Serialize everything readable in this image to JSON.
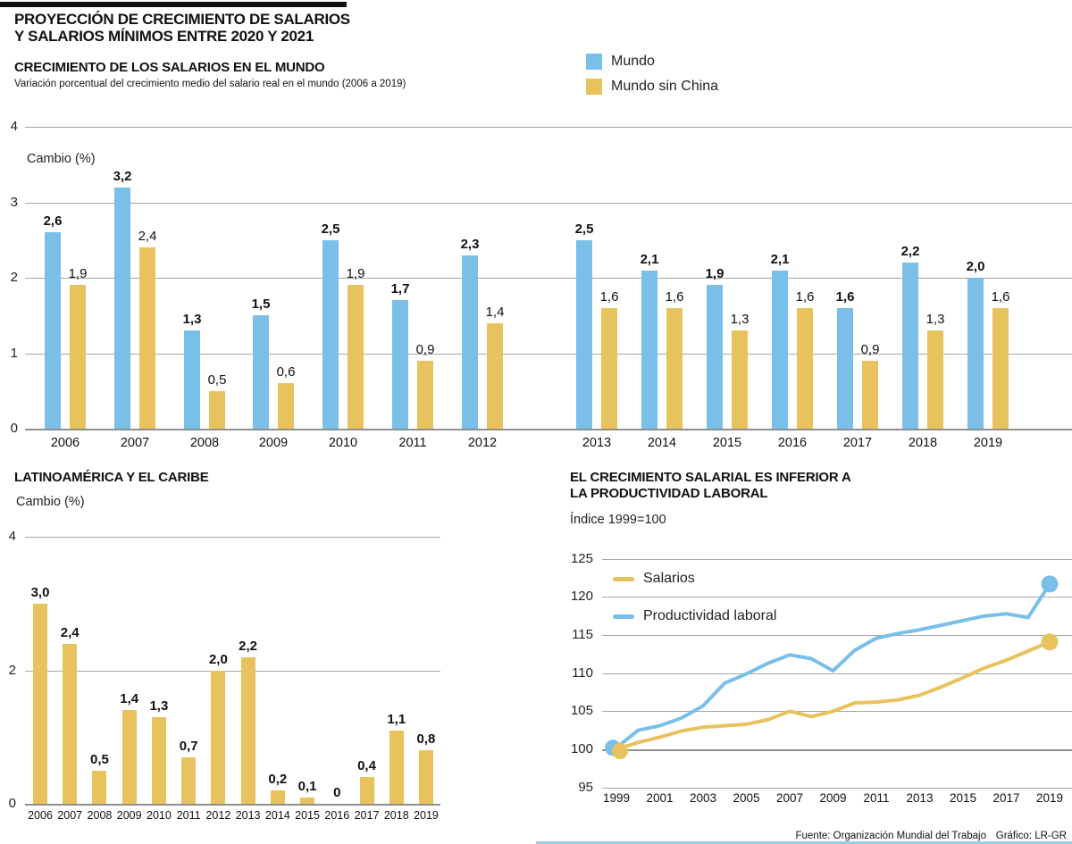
{
  "header": {
    "title_line1": "PROYECCIÓN DE CRECIMIENTO DE SALARIOS",
    "title_line2": "Y SALARIOS MÍNIMOS ENTRE 2020 Y 2021"
  },
  "footer": {
    "source": "Fuente: Organización Mundial del Trabajo",
    "credit": "Gráfico: LR-GR"
  },
  "colors": {
    "blue": "#79bfe7",
    "yellow": "#e8c25c",
    "grid": "#a6a6a6",
    "axis": "#909090",
    "accent_bar": "#111111",
    "bottom_strip": "#9ccbe9"
  },
  "chart_data": [
    {
      "id": "world",
      "type": "bar",
      "title": "CRECIMIENTO DE LOS SALARIOS EN EL MUNDO",
      "subtitle": "Variación porcentual del crecimiento medio del salario real en el mundo (2006 a 2019)",
      "ylabel": "Cambio (%)",
      "ylim": [
        0,
        4
      ],
      "yticks": [
        4,
        3,
        2,
        1,
        0
      ],
      "grid": true,
      "legend_position": "top-right",
      "categories": [
        "2006",
        "2007",
        "2008",
        "2009",
        "2010",
        "2011",
        "2012",
        "2013",
        "2014",
        "2015",
        "2016",
        "2017",
        "2018",
        "2019"
      ],
      "group_break_after": "2012",
      "series": [
        {
          "name": "Mundo",
          "color_key": "blue",
          "values": [
            2.6,
            3.2,
            1.3,
            1.5,
            2.5,
            1.7,
            2.3,
            2.5,
            2.1,
            1.9,
            2.1,
            1.6,
            2.2,
            2.0
          ],
          "labels": [
            "2,6",
            "3,2",
            "1,3",
            "1,5",
            "2,5",
            "1,7",
            "2,3",
            "2,5",
            "2,1",
            "1,9",
            "2,1",
            "1,6",
            "2,2",
            "2,0"
          ]
        },
        {
          "name": "Mundo sin China",
          "color_key": "yellow",
          "values": [
            1.9,
            2.4,
            0.5,
            0.6,
            1.9,
            0.9,
            1.4,
            1.6,
            1.6,
            1.3,
            1.6,
            0.9,
            1.3,
            1.6
          ],
          "labels": [
            "1,9",
            "2,4",
            "0,5",
            "0,6",
            "1,9",
            "0,9",
            "1,4",
            "1,6",
            "1,6",
            "1,3",
            "1,6",
            "0,9",
            "1,3",
            "1,6"
          ]
        }
      ]
    },
    {
      "id": "latam",
      "type": "bar",
      "title": "LATINOAMÉRICA Y EL CARIBE",
      "ylabel": "Cambio (%)",
      "ylim": [
        0,
        4
      ],
      "yticks": [
        4,
        2,
        0
      ],
      "grid": true,
      "categories": [
        "2006",
        "2007",
        "2008",
        "2009",
        "2010",
        "2011",
        "2012",
        "2013",
        "2014",
        "2015",
        "2016",
        "2017",
        "2018",
        "2019"
      ],
      "series": [
        {
          "name": "Latinoamérica y el Caribe",
          "color_key": "yellow",
          "values": [
            3.0,
            2.4,
            0.5,
            1.4,
            1.3,
            0.7,
            2.0,
            2.2,
            0.2,
            0.1,
            0,
            0.4,
            1.1,
            0.8
          ],
          "labels": [
            "3,0",
            "2,4",
            "0,5",
            "1,4",
            "1,3",
            "0,7",
            "2,0",
            "2,2",
            "0,2",
            "0,1",
            "0",
            "0,4",
            "1,1",
            "0,8"
          ]
        }
      ]
    },
    {
      "id": "productivity",
      "type": "line",
      "title_line1": "EL CRECIMIENTO SALARIAL ES INFERIOR A",
      "title_line2": "LA PRODUCTIVIDAD LABORAL",
      "subtitle": "Índice 1999=100",
      "ylim": [
        95,
        125
      ],
      "yticks": [
        125,
        120,
        115,
        110,
        105,
        100,
        95
      ],
      "grid": true,
      "legend_position": "top-left-inside",
      "x": [
        1999,
        2000,
        2001,
        2002,
        2003,
        2004,
        2005,
        2006,
        2007,
        2008,
        2009,
        2010,
        2011,
        2012,
        2013,
        2014,
        2015,
        2016,
        2017,
        2018,
        2019
      ],
      "xticks": [
        "1999",
        "2001",
        "2003",
        "2005",
        "2007",
        "2009",
        "2011",
        "2013",
        "2015",
        "2017",
        "2019"
      ],
      "series": [
        {
          "name": "Salarios",
          "color_key": "yellow",
          "values": [
            100,
            100.9,
            101.6,
            102.4,
            102.9,
            103.1,
            103.3,
            103.9,
            105,
            104.3,
            105,
            106.1,
            106.2,
            106.5,
            107.1,
            108.2,
            109.4,
            110.7,
            111.7,
            112.9,
            114.1
          ]
        },
        {
          "name": "Productividad laboral",
          "color_key": "blue",
          "values": [
            100.2,
            102.5,
            103.1,
            104.1,
            105.7,
            108.7,
            109.9,
            111.3,
            112.4,
            111.9,
            110.3,
            113,
            114.6,
            115.2,
            115.7,
            116.3,
            116.9,
            117.5,
            117.8,
            117.3,
            121.7
          ]
        }
      ]
    }
  ]
}
